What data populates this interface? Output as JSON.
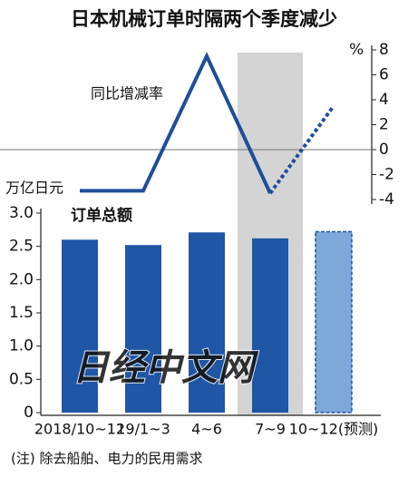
{
  "title": "日本机械订单时隔两个季度减少",
  "note": "(注) 除去船舶、电力的民用需求",
  "watermark": "日经中文网",
  "highlight_index": 3,
  "chart_data": [
    {
      "type": "line",
      "ylabel": "%",
      "label": "同比增减率",
      "values": [
        -3.3,
        -3.3,
        7.5,
        -3.5,
        3.5
      ],
      "forecast": [
        false,
        false,
        false,
        false,
        true
      ],
      "color": "#1f4e9a",
      "ylim": [
        -4,
        8
      ],
      "yticks": [
        8,
        6,
        4,
        2,
        0,
        -2,
        -4
      ]
    },
    {
      "type": "bar",
      "ylabel": "万亿日元",
      "label": "订单总额",
      "categories": [
        "2018/10~12",
        "19/1~3",
        "4~6",
        "7~9",
        "10~12(预测)"
      ],
      "values": [
        2.6,
        2.52,
        2.71,
        2.62,
        2.72
      ],
      "forecast": [
        false,
        false,
        false,
        false,
        true
      ],
      "color": "#1f56a6",
      "forecast_color": "#7ea8d9",
      "ylim": [
        0,
        3
      ],
      "yticks": [
        {
          "value": 3,
          "label": "3.0"
        },
        2.5,
        {
          "value": 2,
          "label": "2.0"
        },
        1.5,
        {
          "value": 1,
          "label": "1.0"
        },
        0.5,
        0
      ]
    }
  ]
}
